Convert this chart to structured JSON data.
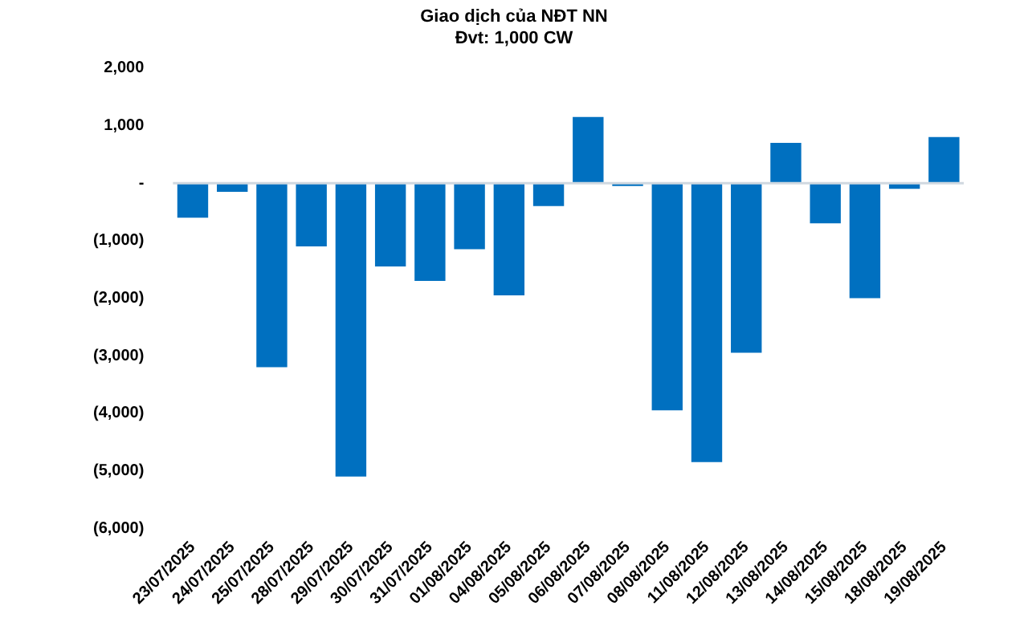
{
  "chart_data": {
    "type": "bar",
    "title": "Giao dịch của NĐT NN",
    "subtitle": "Đvt: 1,000 CW",
    "categories": [
      "23/07/2025",
      "24/07/2025",
      "25/07/2025",
      "28/07/2025",
      "29/07/2025",
      "30/07/2025",
      "31/07/2025",
      "01/08/2025",
      "04/08/2025",
      "05/08/2025",
      "06/08/2025",
      "07/08/2025",
      "08/08/2025",
      "11/08/2025",
      "12/08/2025",
      "13/08/2025",
      "14/08/2025",
      "15/08/2025",
      "18/08/2025",
      "19/08/2025"
    ],
    "values": [
      -600,
      -150,
      -3200,
      -1100,
      -5100,
      -1450,
      -1700,
      -1150,
      -1950,
      -400,
      1150,
      -50,
      -3950,
      -4850,
      -2950,
      700,
      -700,
      -2000,
      -100,
      800
    ],
    "color": "#0070c0",
    "ylim": [
      -6000,
      2000
    ],
    "yticks": [
      {
        "value": -6000,
        "label": "(6,000)"
      },
      {
        "value": -5000,
        "label": "(5,000)"
      },
      {
        "value": -4000,
        "label": "(4,000)"
      },
      {
        "value": -3000,
        "label": "(3,000)"
      },
      {
        "value": -2000,
        "label": "(2,000)"
      },
      {
        "value": -1000,
        "label": "(1,000)"
      },
      {
        "value": 0,
        "label": "-"
      },
      {
        "value": 1000,
        "label": "1,000"
      },
      {
        "value": 2000,
        "label": "2,000"
      }
    ],
    "ref_lines": [
      {
        "axis": "y",
        "value": 0,
        "color": "#d0d8e0"
      }
    ],
    "grid": false,
    "legend": false
  }
}
